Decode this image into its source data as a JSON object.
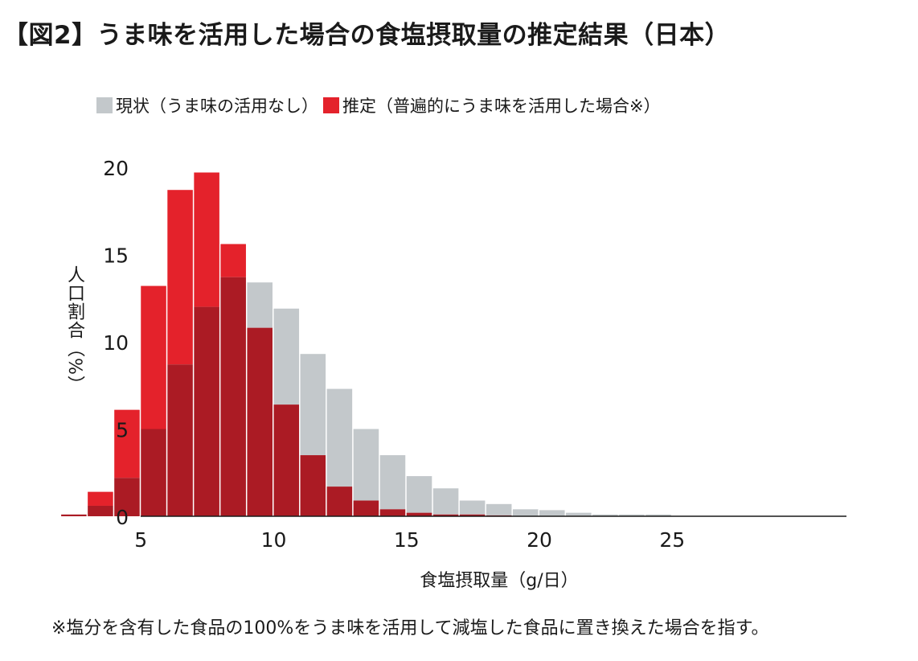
{
  "title": "【図2】うま味を活用した場合の食塩摂取量の推定結果（日本）",
  "legend": {
    "current_label": "現状（うま味の活用なし）",
    "estimated_label": "推定（普遍的にうま味を活用した場合※）"
  },
  "colors": {
    "current": "#c3c8cb",
    "estimated": "#e4222b",
    "overlap": "#ab1b24"
  },
  "footnote": "※塩分を含有した食品の100%をうま味を活用して減塩した食品に置き換えた場合を指す。",
  "chart_data": {
    "type": "bar",
    "title": "【図2】うま味を活用した場合の食塩摂取量の推定結果（日本）",
    "xlabel": "食塩摂取量（g/日）",
    "ylabel": "人口割合（%）",
    "xlim": [
      0,
      25
    ],
    "ylim": [
      0,
      20
    ],
    "xticks": [
      5,
      10,
      15,
      20,
      25
    ],
    "yticks": [
      0,
      5,
      10,
      15,
      20
    ],
    "bin_width": 1,
    "bin_starts": [
      2,
      3,
      4,
      5,
      6,
      7,
      8,
      9,
      10,
      11,
      12,
      13,
      14,
      15,
      16,
      17,
      18,
      19,
      20,
      21,
      22,
      23,
      24
    ],
    "series": [
      {
        "name": "現状（うま味の活用なし）",
        "values": [
          0.1,
          0.6,
          2.2,
          5.0,
          8.7,
          12.0,
          13.7,
          13.4,
          11.9,
          9.3,
          7.3,
          5.0,
          3.5,
          2.3,
          1.6,
          0.9,
          0.7,
          0.4,
          0.35,
          0.2,
          0.1,
          0.1,
          0.1
        ]
      },
      {
        "name": "推定（普遍的にうま味を活用した場合※）",
        "values": [
          0.1,
          1.4,
          6.1,
          13.2,
          18.7,
          19.7,
          15.6,
          10.8,
          6.4,
          3.5,
          1.7,
          0.9,
          0.4,
          0.2,
          0.1,
          0.1,
          0.05,
          0.0,
          0.0,
          0.0,
          0.0,
          0.0,
          0.0
        ]
      }
    ]
  }
}
